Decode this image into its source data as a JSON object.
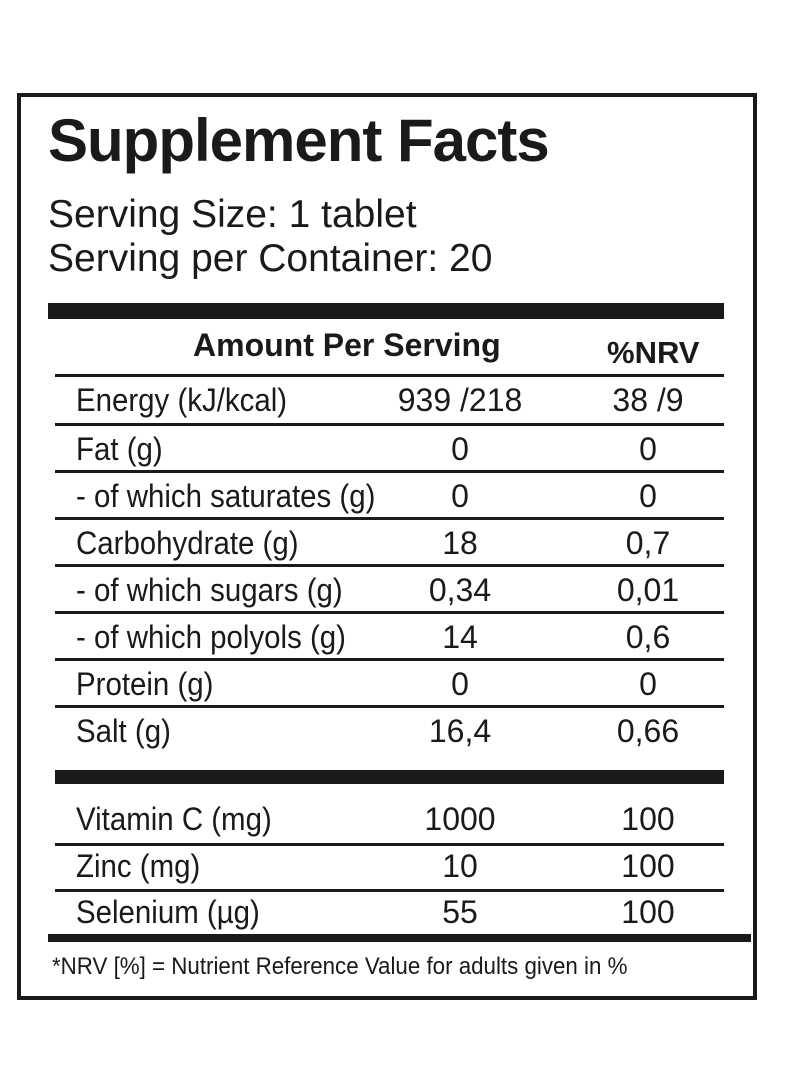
{
  "title": "Supplement Facts",
  "serving_size": "Serving Size: 1 tablet",
  "servings_per_container": "Serving per Container: 20",
  "table_header": {
    "amount": "Amount Per Serving",
    "nrv": "%NRV"
  },
  "nutrients": [
    {
      "label": "Energy (kJ/kcal)",
      "amount": "939 /218",
      "nrv": "38 /9"
    },
    {
      "label": "Fat (g)",
      "amount": "0",
      "nrv": "0"
    },
    {
      "label": "- of which saturates (g)",
      "amount": "0",
      "nrv": "0"
    },
    {
      "label": "Carbohydrate (g)",
      "amount": "18",
      "nrv": "0,7"
    },
    {
      "label": "- of which sugars (g)",
      "amount": "0,34",
      "nrv": "0,01"
    },
    {
      "label": "- of which polyols (g)",
      "amount": "14",
      "nrv": "0,6"
    },
    {
      "label": "Protein (g)",
      "amount": "0",
      "nrv": "0"
    },
    {
      "label": "Salt (g)",
      "amount": "16,4",
      "nrv": "0,66"
    }
  ],
  "micronutrients": [
    {
      "label": "Vitamin C (mg)",
      "amount": "1000",
      "nrv": "100"
    },
    {
      "label": "Zinc (mg)",
      "amount": "10",
      "nrv": "100"
    },
    {
      "label": "Selenium (µg)",
      "amount": "55",
      "nrv": "100"
    }
  ],
  "footnote": "*NRV [%] = Nutrient Reference Value for adults given in %"
}
